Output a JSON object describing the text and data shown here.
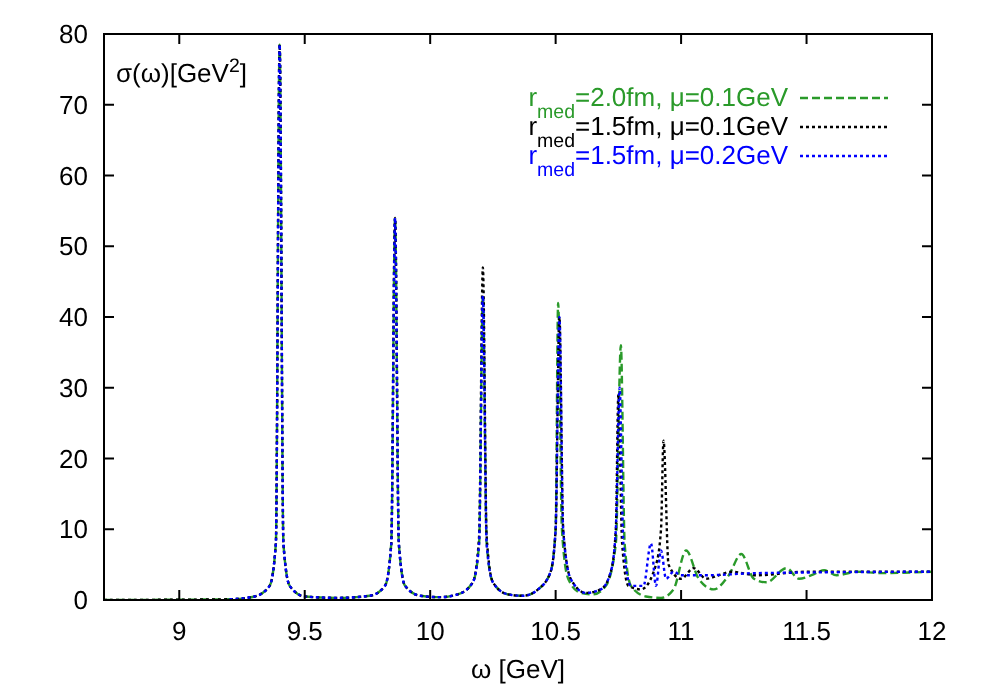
{
  "chart_data": {
    "type": "line",
    "xlabel": "ω [GeV]",
    "ylabel": "σ(ω)[GeV$^{2}$]",
    "xlim": [
      8.7,
      12
    ],
    "ylim": [
      0,
      80
    ],
    "xticks": [
      9,
      9.5,
      10,
      10.5,
      11,
      11.5,
      12
    ],
    "yticks": [
      0,
      10,
      20,
      30,
      40,
      50,
      60,
      70,
      80
    ],
    "grid": false,
    "legend": "top right",
    "series": [
      {
        "name": "r$_{med}$=2.0fm, μ=0.1GeV",
        "color": "#2a9a2a",
        "line_style": "dashed",
        "x": [
          8.7,
          9.2,
          9.3,
          9.36,
          9.385,
          9.4,
          9.415,
          9.44,
          9.5,
          9.63,
          9.76,
          9.82,
          9.845,
          9.86,
          9.875,
          9.9,
          9.96,
          10.04,
          10.11,
          10.17,
          10.195,
          10.21,
          10.225,
          10.25,
          10.31,
          10.37,
          10.43,
          10.48,
          10.5,
          10.51,
          10.525,
          10.55,
          10.6,
          10.65,
          10.7,
          10.74,
          10.76,
          10.775,
          10.8,
          10.86,
          10.92,
          10.97,
          11.02,
          11.07,
          11.13,
          11.19,
          11.24,
          11.29,
          11.34,
          11.42,
          11.47,
          11.52,
          11.57,
          11.62,
          11.7,
          11.8,
          12
        ],
        "values": [
          0,
          0.1,
          0.5,
          2,
          8,
          78.5,
          8,
          2,
          0.5,
          0.3,
          0.6,
          2,
          8,
          54,
          8,
          2,
          0.6,
          0.4,
          0.8,
          2.5,
          8,
          43,
          8,
          2.5,
          0.8,
          0.6,
          1.5,
          4,
          10,
          42,
          10,
          3,
          1,
          0.8,
          2,
          8,
          36,
          8,
          2,
          0.5,
          0.3,
          1.5,
          7,
          3,
          1.5,
          3.5,
          6.5,
          3,
          2.5,
          4.5,
          3,
          3.5,
          4.2,
          3.5,
          4,
          3.8,
          4
        ]
      },
      {
        "name": "r$_{med}$=1.5fm, μ=0.1GeV",
        "color": "#000000",
        "line_style": "dotted",
        "x": [
          8.7,
          9.2,
          9.3,
          9.36,
          9.385,
          9.4,
          9.415,
          9.44,
          9.5,
          9.63,
          9.76,
          9.82,
          9.845,
          9.86,
          9.875,
          9.9,
          9.96,
          10.04,
          10.11,
          10.17,
          10.195,
          10.21,
          10.225,
          10.25,
          10.31,
          10.37,
          10.43,
          10.48,
          10.5,
          10.515,
          10.53,
          10.56,
          10.62,
          10.68,
          10.72,
          10.74,
          10.75,
          10.765,
          10.79,
          10.84,
          10.9,
          10.92,
          10.93,
          10.95,
          11.0,
          11.05,
          11.1,
          11.15,
          11.2,
          11.3,
          11.5,
          12
        ],
        "values": [
          0,
          0.1,
          0.5,
          2,
          8,
          78.5,
          8,
          2,
          0.5,
          0.3,
          0.6,
          2,
          8,
          54,
          8,
          2,
          0.6,
          0.4,
          0.8,
          2.5,
          9,
          47,
          9,
          2.5,
          0.8,
          0.6,
          1.5,
          4,
          10,
          40,
          10,
          3,
          1,
          1.5,
          4,
          10,
          29,
          8,
          2,
          1.5,
          5,
          10,
          22.5,
          5,
          3,
          4.5,
          3,
          3.5,
          4,
          3.5,
          4,
          4
        ]
      },
      {
        "name": "r$_{med}$=1.5fm, μ=0.2GeV",
        "color": "#0000ff",
        "line_style": "dotted",
        "x": [
          9.2,
          9.3,
          9.36,
          9.385,
          9.4,
          9.415,
          9.44,
          9.5,
          9.63,
          9.76,
          9.82,
          9.845,
          9.86,
          9.875,
          9.9,
          9.96,
          10.04,
          10.11,
          10.17,
          10.195,
          10.21,
          10.225,
          10.25,
          10.31,
          10.37,
          10.43,
          10.48,
          10.5,
          10.515,
          10.53,
          10.56,
          10.62,
          10.68,
          10.72,
          10.74,
          10.755,
          10.77,
          10.8,
          10.85,
          10.88,
          10.9,
          10.92,
          10.94,
          10.97,
          11.0,
          11.1,
          11.3,
          12
        ],
        "values": [
          0.1,
          0.5,
          2,
          8,
          78.5,
          8,
          2,
          0.5,
          0.3,
          0.6,
          2,
          8,
          54,
          8,
          2,
          0.6,
          0.4,
          0.8,
          2.5,
          8,
          43,
          8,
          2.5,
          0.8,
          0.6,
          1.5,
          4,
          10,
          40,
          10,
          3,
          1,
          1.5,
          4,
          10,
          30,
          8,
          2,
          2,
          8,
          2,
          7,
          3,
          4,
          3.5,
          3.5,
          3.8,
          4
        ]
      }
    ]
  }
}
